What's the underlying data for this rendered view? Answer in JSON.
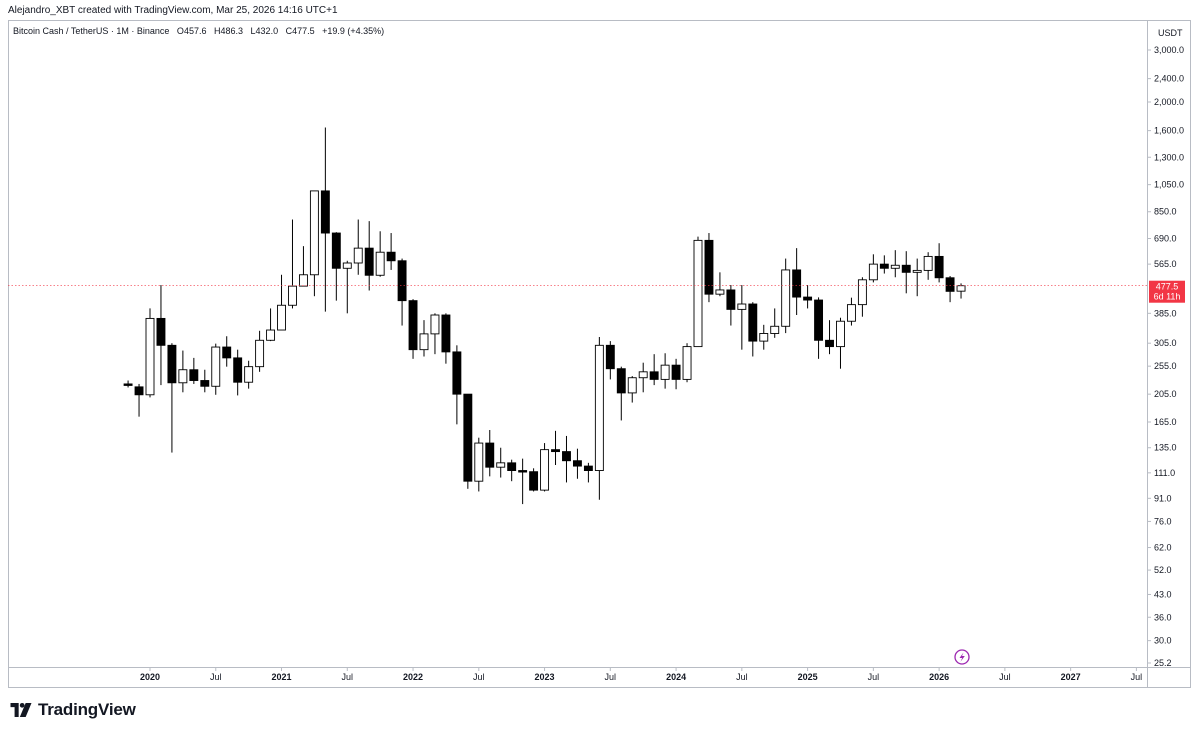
{
  "header": {
    "text": "Alejandro_XBT created with TradingView.com, Mar 25, 2026 14:16 UTC+1"
  },
  "legend": {
    "symbol": "Bitcoin Cash / TetherUS · 1M · Binance",
    "open_label": "O",
    "open": "457.6",
    "high_label": "H",
    "high": "486.3",
    "low_label": "L",
    "low": "432.0",
    "close_label": "C",
    "close": "477.5",
    "change": "+19.9 (+4.35%)"
  },
  "price_tag": {
    "price": "477.5",
    "countdown": "6d 11h",
    "color": "#f23645"
  },
  "colors": {
    "up_body": "#ffffff",
    "down_body": "#000000",
    "wick": "#000000",
    "axis_text": "#131722",
    "last_price_line": "#f23645"
  },
  "icons": {
    "lightning": "lightning-icon",
    "logo": "tradingview-logo-icon"
  },
  "logo_text": "TradingView",
  "chart_data": {
    "type": "candlestick",
    "title": "Bitcoin Cash / TetherUS · 1M · Binance",
    "y_unit": "USDT",
    "y_scale": "log",
    "ylim": [
      25.2,
      3000
    ],
    "grid": false,
    "last_price": 477.5,
    "y_ticks": [
      "3,000.0",
      "2,400.0",
      "2,000.0",
      "1,600.0",
      "1,300.0",
      "1,050.0",
      "850.0",
      "690.0",
      "565.0",
      "385.0",
      "305.0",
      "255.0",
      "205.0",
      "165.0",
      "135.0",
      "111.0",
      "91.0",
      "76.0",
      "62.0",
      "52.0",
      "43.0",
      "36.0",
      "30.0",
      "25.2"
    ],
    "x_ticks": [
      {
        "label": "2020",
        "date": "2020-01"
      },
      {
        "label": "Jul",
        "date": "2020-07"
      },
      {
        "label": "2021",
        "date": "2021-01"
      },
      {
        "label": "Jul",
        "date": "2021-07"
      },
      {
        "label": "2022",
        "date": "2022-01"
      },
      {
        "label": "Jul",
        "date": "2022-07"
      },
      {
        "label": "2023",
        "date": "2023-01"
      },
      {
        "label": "Jul",
        "date": "2023-07"
      },
      {
        "label": "2024",
        "date": "2024-01"
      },
      {
        "label": "Jul",
        "date": "2024-07"
      },
      {
        "label": "2025",
        "date": "2025-01"
      },
      {
        "label": "Jul",
        "date": "2025-07"
      },
      {
        "label": "2026",
        "date": "2026-01"
      },
      {
        "label": "Jul",
        "date": "2026-07"
      },
      {
        "label": "2027",
        "date": "2027-01"
      },
      {
        "label": "Jul",
        "date": "2027-07"
      }
    ],
    "candles": [
      {
        "date": "2019-11",
        "o": 222,
        "h": 228,
        "l": 216,
        "c": 220
      },
      {
        "date": "2019-12",
        "o": 217,
        "h": 222,
        "l": 172,
        "c": 204
      },
      {
        "date": "2020-01",
        "o": 204,
        "h": 400,
        "l": 200,
        "c": 370
      },
      {
        "date": "2020-02",
        "o": 370,
        "h": 480,
        "l": 220,
        "c": 300
      },
      {
        "date": "2020-03",
        "o": 300,
        "h": 305,
        "l": 130,
        "c": 224
      },
      {
        "date": "2020-04",
        "o": 224,
        "h": 288,
        "l": 208,
        "c": 248
      },
      {
        "date": "2020-05",
        "o": 248,
        "h": 272,
        "l": 222,
        "c": 228
      },
      {
        "date": "2020-06",
        "o": 228,
        "h": 248,
        "l": 208,
        "c": 218
      },
      {
        "date": "2020-07",
        "o": 218,
        "h": 304,
        "l": 204,
        "c": 296
      },
      {
        "date": "2020-08",
        "o": 296,
        "h": 322,
        "l": 254,
        "c": 272
      },
      {
        "date": "2020-09",
        "o": 272,
        "h": 290,
        "l": 203,
        "c": 225
      },
      {
        "date": "2020-10",
        "o": 225,
        "h": 266,
        "l": 214,
        "c": 254
      },
      {
        "date": "2020-11",
        "o": 254,
        "h": 336,
        "l": 244,
        "c": 312
      },
      {
        "date": "2020-12",
        "o": 312,
        "h": 400,
        "l": 310,
        "c": 338
      },
      {
        "date": "2021-01",
        "o": 338,
        "h": 520,
        "l": 338,
        "c": 410
      },
      {
        "date": "2021-02",
        "o": 410,
        "h": 800,
        "l": 400,
        "c": 476
      },
      {
        "date": "2021-03",
        "o": 476,
        "h": 650,
        "l": 476,
        "c": 520
      },
      {
        "date": "2021-04",
        "o": 520,
        "h": 1000,
        "l": 440,
        "c": 1000
      },
      {
        "date": "2021-05",
        "o": 1000,
        "h": 1640,
        "l": 390,
        "c": 720
      },
      {
        "date": "2021-06",
        "o": 720,
        "h": 725,
        "l": 425,
        "c": 547
      },
      {
        "date": "2021-07",
        "o": 547,
        "h": 580,
        "l": 385,
        "c": 570
      },
      {
        "date": "2021-08",
        "o": 570,
        "h": 800,
        "l": 520,
        "c": 640
      },
      {
        "date": "2021-09",
        "o": 640,
        "h": 790,
        "l": 460,
        "c": 518
      },
      {
        "date": "2021-10",
        "o": 518,
        "h": 730,
        "l": 512,
        "c": 620
      },
      {
        "date": "2021-11",
        "o": 620,
        "h": 720,
        "l": 540,
        "c": 580
      },
      {
        "date": "2021-12",
        "o": 580,
        "h": 590,
        "l": 350,
        "c": 425
      },
      {
        "date": "2022-01",
        "o": 425,
        "h": 430,
        "l": 270,
        "c": 290
      },
      {
        "date": "2022-02",
        "o": 290,
        "h": 365,
        "l": 275,
        "c": 328
      },
      {
        "date": "2022-03",
        "o": 328,
        "h": 385,
        "l": 280,
        "c": 380
      },
      {
        "date": "2022-04",
        "o": 380,
        "h": 385,
        "l": 260,
        "c": 285
      },
      {
        "date": "2022-05",
        "o": 285,
        "h": 300,
        "l": 162,
        "c": 205
      },
      {
        "date": "2022-06",
        "o": 205,
        "h": 205,
        "l": 98,
        "c": 104
      },
      {
        "date": "2022-07",
        "o": 104,
        "h": 146,
        "l": 96,
        "c": 140
      },
      {
        "date": "2022-08",
        "o": 140,
        "h": 155,
        "l": 108,
        "c": 116
      },
      {
        "date": "2022-09",
        "o": 116,
        "h": 135,
        "l": 107,
        "c": 120
      },
      {
        "date": "2022-10",
        "o": 120,
        "h": 123,
        "l": 104,
        "c": 113
      },
      {
        "date": "2022-11",
        "o": 113,
        "h": 124,
        "l": 87,
        "c": 112
      },
      {
        "date": "2022-12",
        "o": 112,
        "h": 115,
        "l": 96,
        "c": 97
      },
      {
        "date": "2023-01",
        "o": 97,
        "h": 140,
        "l": 96,
        "c": 133
      },
      {
        "date": "2023-02",
        "o": 133,
        "h": 154,
        "l": 118,
        "c": 131
      },
      {
        "date": "2023-03",
        "o": 131,
        "h": 148,
        "l": 103,
        "c": 122
      },
      {
        "date": "2023-04",
        "o": 122,
        "h": 134,
        "l": 106,
        "c": 117
      },
      {
        "date": "2023-05",
        "o": 117,
        "h": 120,
        "l": 103,
        "c": 113
      },
      {
        "date": "2023-06",
        "o": 113,
        "h": 320,
        "l": 90,
        "c": 300
      },
      {
        "date": "2023-07",
        "o": 300,
        "h": 310,
        "l": 230,
        "c": 250
      },
      {
        "date": "2023-08",
        "o": 250,
        "h": 254,
        "l": 167,
        "c": 207
      },
      {
        "date": "2023-09",
        "o": 207,
        "h": 236,
        "l": 192,
        "c": 233
      },
      {
        "date": "2023-10",
        "o": 233,
        "h": 262,
        "l": 208,
        "c": 244
      },
      {
        "date": "2023-11",
        "o": 244,
        "h": 280,
        "l": 220,
        "c": 230
      },
      {
        "date": "2023-12",
        "o": 230,
        "h": 282,
        "l": 214,
        "c": 257
      },
      {
        "date": "2024-01",
        "o": 257,
        "h": 270,
        "l": 213,
        "c": 230
      },
      {
        "date": "2024-02",
        "o": 230,
        "h": 305,
        "l": 225,
        "c": 297
      },
      {
        "date": "2024-03",
        "o": 297,
        "h": 700,
        "l": 297,
        "c": 680
      },
      {
        "date": "2024-04",
        "o": 680,
        "h": 720,
        "l": 420,
        "c": 447
      },
      {
        "date": "2024-05",
        "o": 447,
        "h": 530,
        "l": 440,
        "c": 462
      },
      {
        "date": "2024-06",
        "o": 462,
        "h": 480,
        "l": 350,
        "c": 397
      },
      {
        "date": "2024-07",
        "o": 397,
        "h": 480,
        "l": 290,
        "c": 414
      },
      {
        "date": "2024-08",
        "o": 414,
        "h": 420,
        "l": 275,
        "c": 310
      },
      {
        "date": "2024-09",
        "o": 310,
        "h": 352,
        "l": 290,
        "c": 329
      },
      {
        "date": "2024-10",
        "o": 329,
        "h": 400,
        "l": 318,
        "c": 348
      },
      {
        "date": "2024-11",
        "o": 348,
        "h": 590,
        "l": 330,
        "c": 540
      },
      {
        "date": "2024-12",
        "o": 540,
        "h": 640,
        "l": 380,
        "c": 437
      },
      {
        "date": "2025-01",
        "o": 437,
        "h": 480,
        "l": 400,
        "c": 427
      },
      {
        "date": "2025-02",
        "o": 427,
        "h": 436,
        "l": 270,
        "c": 312
      },
      {
        "date": "2025-03",
        "o": 312,
        "h": 365,
        "l": 280,
        "c": 297
      },
      {
        "date": "2025-04",
        "o": 297,
        "h": 372,
        "l": 250,
        "c": 362
      },
      {
        "date": "2025-05",
        "o": 362,
        "h": 435,
        "l": 350,
        "c": 412
      },
      {
        "date": "2025-06",
        "o": 412,
        "h": 510,
        "l": 375,
        "c": 500
      },
      {
        "date": "2025-07",
        "o": 500,
        "h": 610,
        "l": 490,
        "c": 565
      },
      {
        "date": "2025-08",
        "o": 565,
        "h": 605,
        "l": 525,
        "c": 547
      },
      {
        "date": "2025-09",
        "o": 547,
        "h": 630,
        "l": 510,
        "c": 560
      },
      {
        "date": "2025-10",
        "o": 560,
        "h": 625,
        "l": 450,
        "c": 530
      },
      {
        "date": "2025-11",
        "o": 530,
        "h": 590,
        "l": 440,
        "c": 538
      },
      {
        "date": "2025-12",
        "o": 538,
        "h": 620,
        "l": 500,
        "c": 600
      },
      {
        "date": "2026-01",
        "o": 600,
        "h": 665,
        "l": 490,
        "c": 508
      },
      {
        "date": "2026-02",
        "o": 508,
        "h": 515,
        "l": 420,
        "c": 457
      },
      {
        "date": "2026-03",
        "o": 457.6,
        "h": 486.3,
        "l": 432.0,
        "c": 477.5
      }
    ]
  }
}
